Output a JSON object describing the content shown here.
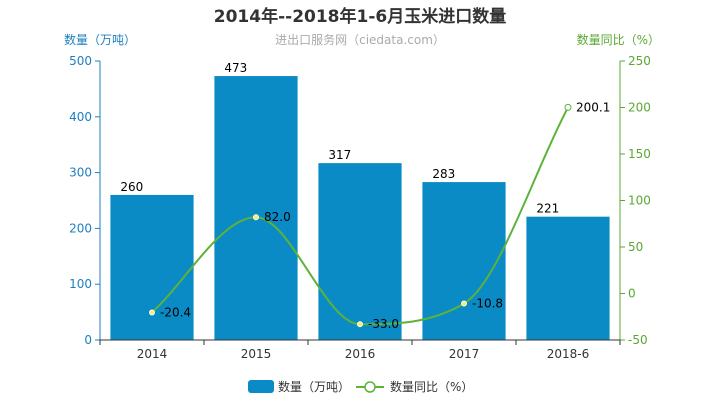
{
  "chart_data": {
    "type": "bar",
    "title": "2014年--2018年1-6月玉米进口数量",
    "subtitle": "进出口服务网（ciedata.com）",
    "categories": [
      "2014",
      "2015",
      "2016",
      "2017",
      "2018-6"
    ],
    "series": [
      {
        "name": "数量（万吨）",
        "type": "bar",
        "axis": "left",
        "values": [
          260,
          473,
          317,
          283,
          221
        ]
      },
      {
        "name": "数量同比（%）",
        "type": "line",
        "axis": "right",
        "values": [
          -20.4,
          82.0,
          -33.0,
          -10.8,
          200.1
        ]
      }
    ],
    "y_left": {
      "label": "数量（万吨）",
      "range": [
        0,
        500
      ],
      "ticks": [
        "0",
        "100",
        "200",
        "300",
        "400",
        "500"
      ]
    },
    "y_right": {
      "label": "数量同比（%）",
      "range": [
        -50,
        250
      ],
      "ticks": [
        "-50",
        "0",
        "50",
        "100",
        "150",
        "200",
        "250"
      ]
    },
    "bar_value_labels": [
      "260",
      "473",
      "317",
      "283",
      "221"
    ],
    "line_value_labels": [
      "-20.4",
      "82.0",
      "-33.0",
      "-10.8",
      "200.1"
    ],
    "legend": {
      "position": "bottom",
      "items": [
        "数量（万吨）",
        "数量同比（%）"
      ]
    },
    "colors": {
      "bar": "#0a8bc5",
      "line": "#5db33a",
      "left_axis": "#1f7fbf",
      "right_axis": "#5aa832"
    },
    "grid": false
  }
}
